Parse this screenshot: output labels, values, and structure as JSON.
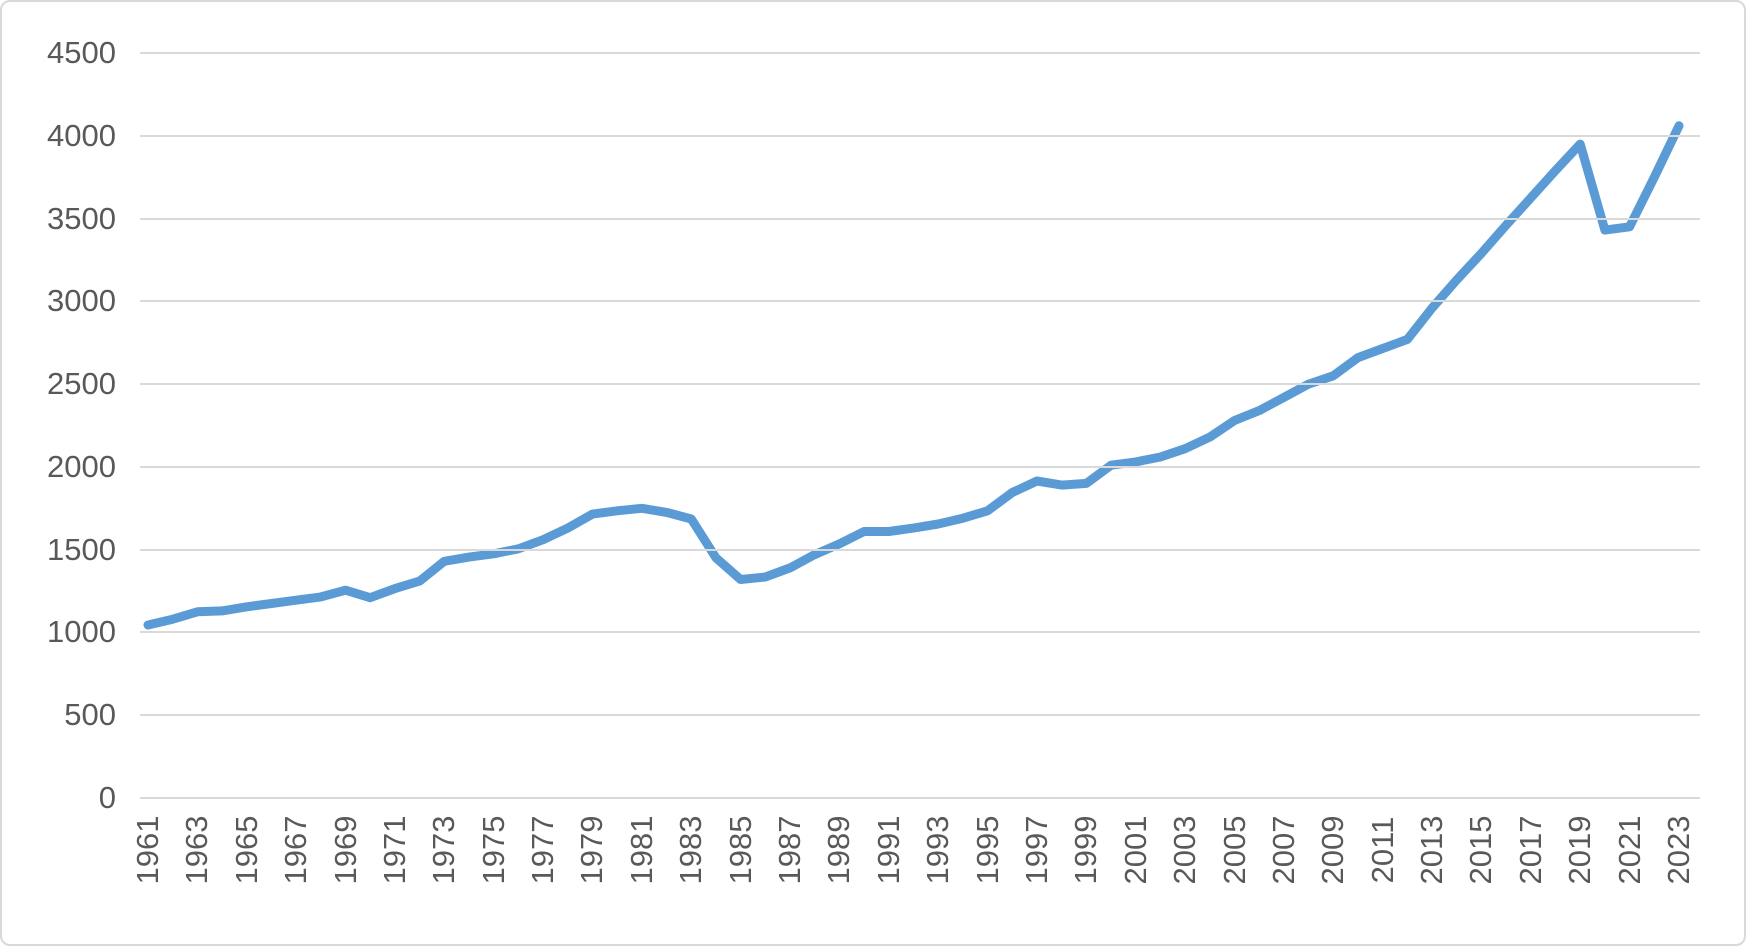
{
  "chart_data": {
    "type": "line",
    "title": "",
    "xlabel": "",
    "ylabel": "",
    "x": [
      1961,
      1962,
      1963,
      1964,
      1965,
      1966,
      1967,
      1968,
      1969,
      1970,
      1971,
      1972,
      1973,
      1974,
      1975,
      1976,
      1977,
      1978,
      1979,
      1980,
      1981,
      1982,
      1983,
      1984,
      1985,
      1986,
      1987,
      1988,
      1989,
      1990,
      1991,
      1992,
      1993,
      1994,
      1995,
      1996,
      1997,
      1998,
      1999,
      2000,
      2001,
      2002,
      2003,
      2004,
      2005,
      2006,
      2007,
      2008,
      2009,
      2010,
      2011,
      2012,
      2013,
      2014,
      2015,
      2016,
      2017,
      2018,
      2019,
      2020,
      2021,
      2022,
      2023
    ],
    "values": [
      1045,
      1080,
      1125,
      1130,
      1155,
      1175,
      1195,
      1215,
      1255,
      1210,
      1265,
      1310,
      1430,
      1455,
      1475,
      1505,
      1560,
      1630,
      1715,
      1735,
      1750,
      1725,
      1685,
      1450,
      1320,
      1335,
      1390,
      1470,
      1535,
      1610,
      1610,
      1630,
      1655,
      1690,
      1735,
      1845,
      1915,
      1890,
      1900,
      2010,
      2030,
      2060,
      2110,
      2180,
      2280,
      2340,
      2420,
      2500,
      2550,
      2660,
      2715,
      2770,
      2960,
      3130,
      3290,
      3460,
      3625,
      3790,
      3950,
      3430,
      3450,
      3750,
      4060
    ],
    "ylim": [
      0,
      4500
    ],
    "ytick_labels": [
      "0",
      "500",
      "1000",
      "1500",
      "2000",
      "2500",
      "3000",
      "3500",
      "4000",
      "4500"
    ],
    "yticks": [
      0,
      500,
      1000,
      1500,
      2000,
      2500,
      3000,
      3500,
      4000,
      4500
    ],
    "xtick_labels": [
      "1961",
      "1963",
      "1965",
      "1967",
      "1969",
      "1971",
      "1973",
      "1975",
      "1977",
      "1979",
      "1981",
      "1983",
      "1985",
      "1987",
      "1989",
      "1991",
      "1993",
      "1995",
      "1997",
      "1999",
      "2001",
      "2003",
      "2005",
      "2007",
      "2009",
      "2011",
      "2013",
      "2015",
      "2017",
      "2019",
      "2021",
      "2023"
    ],
    "xticks": [
      1961,
      1963,
      1965,
      1967,
      1969,
      1971,
      1973,
      1975,
      1977,
      1979,
      1981,
      1983,
      1985,
      1987,
      1989,
      1991,
      1993,
      1995,
      1997,
      1999,
      2001,
      2003,
      2005,
      2007,
      2009,
      2011,
      2013,
      2015,
      2017,
      2019,
      2021,
      2023
    ],
    "grid": "horizontal",
    "legend": "none",
    "series_color": "#5b9bd5",
    "gridline_color": "#d9d9d9",
    "tick_label_color": "#595959",
    "frame_border_color": "#d9d9d9",
    "background_color": "#ffffff"
  }
}
